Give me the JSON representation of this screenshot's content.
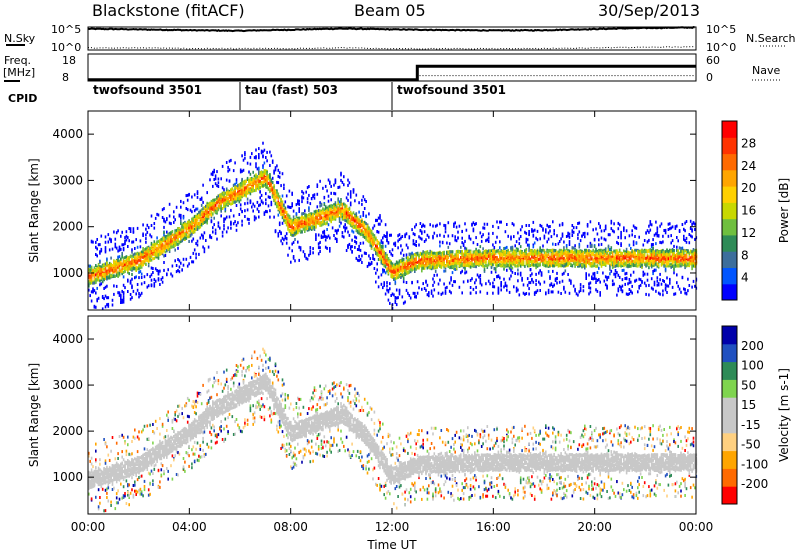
{
  "header": {
    "station": "Blackstone (fitACF)",
    "beam": "Beam 05",
    "date": "30/Sep/2013"
  },
  "side_labels": {
    "nsky": "N.Sky",
    "nsearch": "N.Search",
    "freq_line1": "Freq.",
    "freq_line2": "[MHz]",
    "nave": "Nave",
    "cpid": "CPID"
  },
  "cpid_segments": [
    {
      "label": "twofsound 3501",
      "start_hour": 0,
      "end_hour": 6
    },
    {
      "label": "tau (fast) 503",
      "start_hour": 6,
      "end_hour": 12
    },
    {
      "label": "twofsound 3501",
      "start_hour": 12,
      "end_hour": 24
    }
  ],
  "colors": {
    "frame": "#000000",
    "trace": "#000000",
    "background": "#ffffff"
  },
  "chart_data": [
    {
      "type": "line",
      "panel": "noise",
      "series": [
        {
          "name": "N.Sky",
          "values": [
            40000,
            30000,
            20000,
            15000,
            25000,
            45000,
            30000,
            22000,
            18000,
            20000,
            35000,
            60000,
            80000
          ]
        },
        {
          "name": "N.Search",
          "values": [
            3,
            3,
            2,
            2,
            2,
            3,
            2,
            2,
            2,
            2,
            3,
            4,
            5
          ]
        }
      ],
      "x": [
        0,
        2,
        4,
        6,
        8,
        10,
        12,
        14,
        16,
        18,
        20,
        22,
        24
      ],
      "left_ticks": [
        "10^5",
        "10^0"
      ],
      "right_ticks": [
        "10^5",
        "10^0"
      ]
    },
    {
      "type": "line",
      "panel": "frequency",
      "series": [
        {
          "name": "Freq.",
          "x": [
            0,
            13,
            13,
            24
          ],
          "values": [
            8.5,
            8.5,
            13.5,
            13.5
          ]
        },
        {
          "name": "Nave",
          "x": [
            0,
            13,
            13,
            24
          ],
          "values": [
            2,
            2,
            12,
            12
          ]
        }
      ],
      "left_ticks": [
        "18",
        "8"
      ],
      "right_ticks": [
        "60",
        "0"
      ]
    },
    {
      "type": "heatmap",
      "panel": "power",
      "ylabel": "Slant Range [km]",
      "xlim": [
        0,
        24
      ],
      "ylim": [
        200,
        4500
      ],
      "yticks": [
        1000,
        2000,
        3000,
        4000
      ],
      "colorbar": {
        "label": "Power [dB]",
        "ticks": [
          "28",
          "24",
          "20",
          "16",
          "12",
          "8",
          "4"
        ],
        "range": [
          0,
          30
        ]
      },
      "features": [
        {
          "name": "main echo band",
          "x": [
            0,
            2,
            4,
            5,
            6,
            7,
            8,
            9,
            10,
            11,
            12,
            13,
            16,
            20,
            24
          ],
          "y": [
            950,
            1300,
            2000,
            2500,
            2800,
            3100,
            2000,
            2200,
            2400,
            1900,
            1050,
            1300,
            1350,
            1350,
            1350
          ],
          "power_db": 25
        }
      ]
    },
    {
      "type": "heatmap",
      "panel": "velocity",
      "ylabel": "Slant Range [km]",
      "xlabel": "Time UT",
      "xlim": [
        0,
        24
      ],
      "ylim": [
        200,
        4500
      ],
      "yticks": [
        1000,
        2000,
        3000,
        4000
      ],
      "xtick_labels": [
        "00:00",
        "04:00",
        "08:00",
        "12:00",
        "16:00",
        "20:00",
        "00:00"
      ],
      "colorbar": {
        "label": "Velocity [m s-1]",
        "ticks": [
          "200",
          "100",
          "50",
          "15",
          "-15",
          "-50",
          "-100",
          "-200"
        ],
        "range": [
          -250,
          250
        ]
      },
      "features": [
        {
          "name": "main echo band",
          "x": [
            0,
            2,
            4,
            5,
            6,
            7,
            8,
            9,
            10,
            11,
            12,
            13,
            16,
            20,
            24
          ],
          "y": [
            950,
            1300,
            2000,
            2500,
            2800,
            3100,
            2000,
            2200,
            2400,
            1900,
            1050,
            1300,
            1350,
            1350,
            1350
          ],
          "velocity": 0
        }
      ]
    }
  ]
}
